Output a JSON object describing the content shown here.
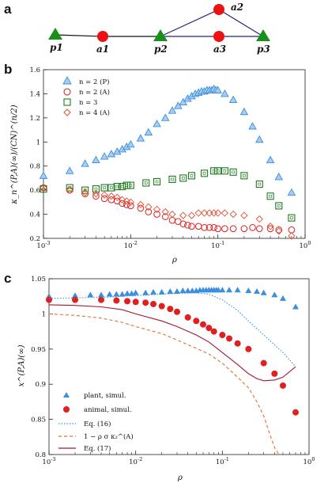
{
  "panels": {
    "a": "a",
    "b": "b",
    "c": "c"
  },
  "network": {
    "nodes": [
      {
        "id": "p1",
        "kind": "plant"
      },
      {
        "id": "a1",
        "kind": "animal"
      },
      {
        "id": "p2",
        "kind": "plant"
      },
      {
        "id": "a2",
        "kind": "animal"
      },
      {
        "id": "a3",
        "kind": "animal"
      },
      {
        "id": "p3",
        "kind": "plant"
      }
    ],
    "edges": [
      [
        "p1",
        "a1"
      ],
      [
        "a1",
        "p2"
      ],
      [
        "p2",
        "a2"
      ],
      [
        "p2",
        "a3"
      ],
      [
        "a2",
        "p3"
      ],
      [
        "a3",
        "p3"
      ]
    ]
  },
  "colors": {
    "plant": "#1a8f1a",
    "animal": "#ee1111",
    "blue": "#3a8fdf",
    "red": "#e02020",
    "green": "#1e7a1e",
    "orange": "#e07030",
    "maroon": "#a01830",
    "network_edge": "#23237a"
  },
  "chart_data": [
    {
      "type": "scatter",
      "xscale": "log",
      "xlim": [
        0.001,
        1
      ],
      "ylim": [
        0.2,
        1.6
      ],
      "xlabel": "ρ",
      "ylabel": "κ_n^(P,A)(∞)/(CN)^(n/2)",
      "xticks": [
        "10^-3",
        "10^-2",
        "10^-1",
        "10^0"
      ],
      "yticks": [
        "0.2",
        "0.4",
        "0.6",
        "0.8",
        "1",
        "1.2",
        "1.4",
        "1.6"
      ],
      "legend_position": "top-left",
      "series": [
        {
          "name": "n = 2 (P)",
          "marker": "triangle",
          "color": "#3a8fdf",
          "x": [
            0.001,
            0.002,
            0.003,
            0.004,
            0.005,
            0.006,
            0.007,
            0.008,
            0.009,
            0.01,
            0.013,
            0.016,
            0.02,
            0.025,
            0.03,
            0.035,
            0.04,
            0.045,
            0.05,
            0.055,
            0.06,
            0.065,
            0.07,
            0.075,
            0.08,
            0.085,
            0.09,
            0.095,
            0.1,
            0.12,
            0.15,
            0.2,
            0.25,
            0.3,
            0.4,
            0.5,
            0.7
          ],
          "y": [
            0.72,
            0.76,
            0.82,
            0.85,
            0.88,
            0.9,
            0.92,
            0.94,
            0.96,
            0.98,
            1.03,
            1.08,
            1.15,
            1.2,
            1.26,
            1.3,
            1.33,
            1.36,
            1.38,
            1.4,
            1.41,
            1.42,
            1.42,
            1.43,
            1.43,
            1.43,
            1.44,
            1.43,
            1.43,
            1.4,
            1.35,
            1.25,
            1.13,
            1.02,
            0.85,
            0.71,
            0.58
          ]
        },
        {
          "name": "n = 2 (A)",
          "marker": "circle",
          "color": "#e02020",
          "x": [
            0.001,
            0.002,
            0.003,
            0.004,
            0.005,
            0.006,
            0.007,
            0.008,
            0.009,
            0.01,
            0.013,
            0.016,
            0.02,
            0.025,
            0.03,
            0.035,
            0.04,
            0.045,
            0.05,
            0.06,
            0.07,
            0.08,
            0.09,
            0.1,
            0.12,
            0.15,
            0.2,
            0.25,
            0.3,
            0.4,
            0.5,
            0.7
          ],
          "y": [
            0.62,
            0.6,
            0.57,
            0.55,
            0.53,
            0.52,
            0.51,
            0.49,
            0.48,
            0.47,
            0.45,
            0.42,
            0.4,
            0.38,
            0.35,
            0.34,
            0.32,
            0.31,
            0.3,
            0.3,
            0.29,
            0.29,
            0.29,
            0.28,
            0.28,
            0.28,
            0.28,
            0.29,
            0.28,
            0.28,
            0.27,
            0.27
          ]
        },
        {
          "name": "n = 3",
          "marker": "square",
          "color": "#1e7a1e",
          "x": [
            0.001,
            0.002,
            0.003,
            0.004,
            0.005,
            0.006,
            0.007,
            0.008,
            0.009,
            0.01,
            0.015,
            0.02,
            0.03,
            0.04,
            0.05,
            0.07,
            0.09,
            0.1,
            0.12,
            0.15,
            0.2,
            0.3,
            0.4,
            0.5,
            0.7
          ],
          "y": [
            0.61,
            0.62,
            0.6,
            0.61,
            0.62,
            0.62,
            0.63,
            0.63,
            0.64,
            0.64,
            0.66,
            0.67,
            0.69,
            0.7,
            0.72,
            0.74,
            0.76,
            0.76,
            0.76,
            0.75,
            0.72,
            0.65,
            0.55,
            0.47,
            0.37
          ]
        },
        {
          "name": "n = 4 (A)",
          "marker": "diamond",
          "color": "#e05030",
          "x": [
            0.001,
            0.002,
            0.003,
            0.004,
            0.005,
            0.006,
            0.007,
            0.008,
            0.009,
            0.01,
            0.013,
            0.016,
            0.02,
            0.025,
            0.03,
            0.04,
            0.05,
            0.06,
            0.07,
            0.08,
            0.09,
            0.1,
            0.12,
            0.15,
            0.2,
            0.3,
            0.4,
            0.5,
            0.7
          ],
          "y": [
            0.62,
            0.6,
            0.58,
            0.57,
            0.56,
            0.55,
            0.54,
            0.52,
            0.51,
            0.5,
            0.48,
            0.46,
            0.44,
            0.42,
            0.4,
            0.39,
            0.39,
            0.41,
            0.41,
            0.41,
            0.41,
            0.41,
            0.41,
            0.4,
            0.39,
            0.36,
            0.3,
            0.26,
            0.22
          ]
        }
      ]
    },
    {
      "type": "line",
      "xscale": "log",
      "xlim": [
        0.001,
        1
      ],
      "ylim": [
        0.8,
        1.05
      ],
      "xlabel": "ρ",
      "ylabel": "x^(P,A)(∞)",
      "xticks": [
        "10^-3",
        "10^-2",
        "10^-1",
        "10^0"
      ],
      "yticks": [
        "0.8",
        "0.85",
        "0.9",
        "0.95",
        "1",
        "1.05"
      ],
      "legend_position": "bottom-left",
      "series": [
        {
          "name": "plant, simul.",
          "style": "triangle",
          "color": "#3a8fdf",
          "x": [
            0.001,
            0.002,
            0.003,
            0.004,
            0.005,
            0.006,
            0.007,
            0.008,
            0.009,
            0.01,
            0.013,
            0.016,
            0.02,
            0.025,
            0.03,
            0.035,
            0.04,
            0.045,
            0.05,
            0.055,
            0.06,
            0.065,
            0.07,
            0.075,
            0.08,
            0.085,
            0.09,
            0.1,
            0.12,
            0.15,
            0.2,
            0.25,
            0.3,
            0.4,
            0.5,
            0.7
          ],
          "y": [
            1.025,
            1.026,
            1.027,
            1.027,
            1.028,
            1.028,
            1.028,
            1.029,
            1.029,
            1.03,
            1.03,
            1.031,
            1.031,
            1.032,
            1.032,
            1.033,
            1.033,
            1.033,
            1.033,
            1.034,
            1.034,
            1.034,
            1.034,
            1.034,
            1.034,
            1.034,
            1.034,
            1.034,
            1.034,
            1.034,
            1.033,
            1.032,
            1.03,
            1.027,
            1.022,
            1.01
          ]
        },
        {
          "name": "animal, simul.",
          "style": "circle",
          "color": "#e02020",
          "x": [
            0.001,
            0.002,
            0.004,
            0.006,
            0.008,
            0.01,
            0.013,
            0.016,
            0.02,
            0.025,
            0.03,
            0.04,
            0.05,
            0.06,
            0.07,
            0.08,
            0.1,
            0.12,
            0.15,
            0.2,
            0.3,
            0.4,
            0.5,
            0.7
          ],
          "y": [
            1.02,
            1.02,
            1.02,
            1.019,
            1.018,
            1.017,
            1.016,
            1.014,
            1.011,
            1.007,
            1.003,
            0.995,
            0.99,
            0.985,
            0.98,
            0.975,
            0.97,
            0.965,
            0.958,
            0.95,
            0.93,
            0.915,
            0.898,
            0.86
          ]
        },
        {
          "name": "Eq. (16)",
          "style": "dotted",
          "color": "#3a8fdf",
          "x": [
            0.001,
            0.005,
            0.01,
            0.02,
            0.03,
            0.05,
            0.07,
            0.1,
            0.15,
            0.2,
            0.3,
            0.5,
            0.7
          ],
          "y": [
            1.022,
            1.024,
            1.026,
            1.028,
            1.029,
            1.03,
            1.028,
            1.02,
            1.005,
            0.99,
            0.97,
            0.945,
            0.925
          ]
        },
        {
          "name": "1 − ρ σ κ₂^(A)",
          "style": "dashed",
          "color": "#e07030",
          "x": [
            0.001,
            0.002,
            0.004,
            0.007,
            0.01,
            0.02,
            0.03,
            0.05,
            0.07,
            0.1,
            0.15,
            0.2,
            0.25,
            0.3,
            0.35,
            0.4,
            0.45
          ],
          "y": [
            1.0,
            0.998,
            0.994,
            0.988,
            0.982,
            0.972,
            0.963,
            0.951,
            0.943,
            0.93,
            0.91,
            0.895,
            0.875,
            0.855,
            0.83,
            0.81,
            0.8
          ]
        },
        {
          "name": "Eq. (17)",
          "style": "solid",
          "color": "#a01830",
          "x": [
            0.001,
            0.002,
            0.004,
            0.007,
            0.01,
            0.02,
            0.03,
            0.05,
            0.07,
            0.1,
            0.15,
            0.2,
            0.25,
            0.3,
            0.4,
            0.5,
            0.6,
            0.7
          ],
          "y": [
            1.013,
            1.012,
            1.01,
            1.006,
            1.0,
            0.99,
            0.982,
            0.97,
            0.96,
            0.945,
            0.928,
            0.915,
            0.908,
            0.905,
            0.906,
            0.91,
            0.918,
            0.925
          ]
        }
      ]
    }
  ]
}
